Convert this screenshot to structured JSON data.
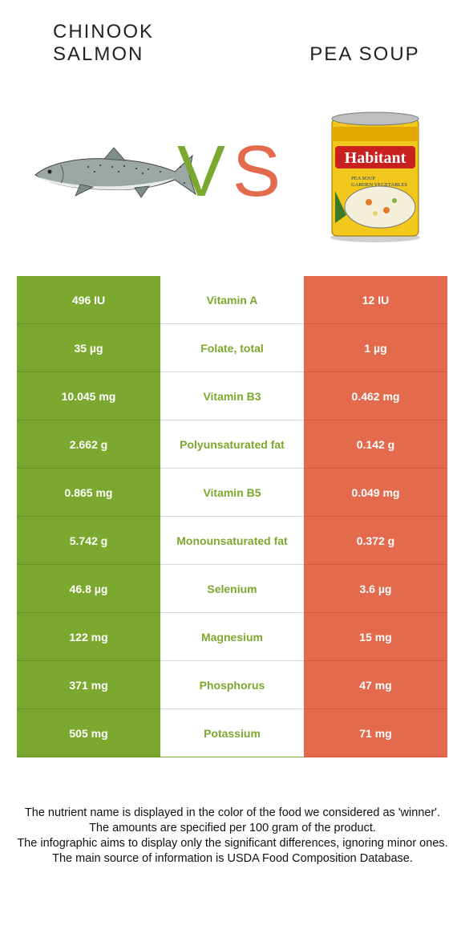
{
  "header": {
    "left_food": "CHINOOK SALMON",
    "right_food": "PEA SOUP",
    "vs_v": "V",
    "vs_s": "S",
    "left_image_icon": "salmon-fish-image",
    "right_image_icon": "soup-can-image",
    "can_brand": "Habitant",
    "can_label_line1": "PEA SOUP",
    "can_label_line2": "GARDEN VEGETABLES"
  },
  "colors": {
    "left": "#7ba82e",
    "right": "#e36a4d"
  },
  "rows": [
    {
      "left": "496 IU",
      "nutrient": "Vitamin A",
      "right": "12 IU"
    },
    {
      "left": "35 µg",
      "nutrient": "Folate, total",
      "right": "1 µg"
    },
    {
      "left": "10.045 mg",
      "nutrient": "Vitamin B3",
      "right": "0.462 mg"
    },
    {
      "left": "2.662 g",
      "nutrient": "Polyunsaturated fat",
      "right": "0.142 g"
    },
    {
      "left": "0.865 mg",
      "nutrient": "Vitamin B5",
      "right": "0.049 mg"
    },
    {
      "left": "5.742 g",
      "nutrient": "Monounsaturated fat",
      "right": "0.372 g"
    },
    {
      "left": "46.8 µg",
      "nutrient": "Selenium",
      "right": "3.6 µg"
    },
    {
      "left": "122 mg",
      "nutrient": "Magnesium",
      "right": "15 mg"
    },
    {
      "left": "371 mg",
      "nutrient": "Phosphorus",
      "right": "47 mg"
    },
    {
      "left": "505 mg",
      "nutrient": "Potassium",
      "right": "71 mg"
    }
  ],
  "footer": {
    "line1": "The nutrient name is displayed in the color of the food we considered as 'winner'.",
    "line2": "The amounts are specified per 100 gram of the product.",
    "line3": "The infographic aims to display only the significant differences, ignoring minor ones.",
    "line4": "The main source of information is USDA Food Composition Database."
  }
}
